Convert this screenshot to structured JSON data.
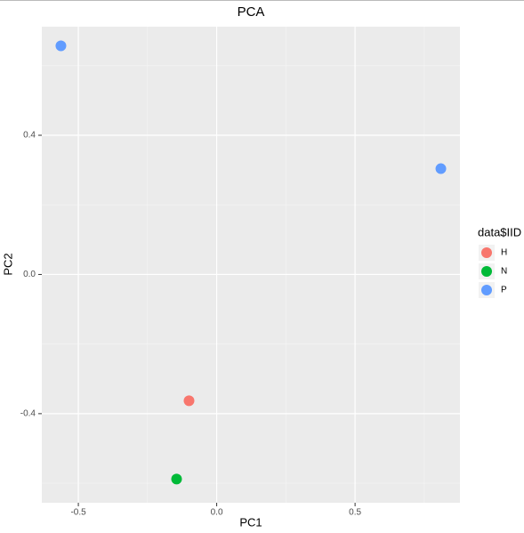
{
  "chart_data": {
    "type": "scatter",
    "title": "PCA",
    "x_label": "PC1",
    "y_label": "PC2",
    "legend_title": "data$IID",
    "legend_position": "right",
    "grid": true,
    "xlim": [
      -0.632,
      0.879
    ],
    "ylim": [
      -0.656,
      0.712
    ],
    "xticks": [
      -0.5,
      {
        "value": 0,
        "label": "0.0"
      },
      0.5
    ],
    "yticks": [
      -0.4,
      {
        "value": 0,
        "label": "0.0"
      },
      0.4
    ],
    "series": [
      {
        "name": "H",
        "color": "#f8766d",
        "x": [
          -0.1
        ],
        "values": [
          -0.363
        ]
      },
      {
        "name": "N",
        "color": "#00ba38",
        "x": [
          -0.145
        ],
        "values": [
          -0.588
        ]
      },
      {
        "name": "P",
        "color": "#619cff",
        "x": [
          -0.563,
          0.81
        ],
        "values": [
          0.657,
          0.304
        ]
      }
    ]
  }
}
